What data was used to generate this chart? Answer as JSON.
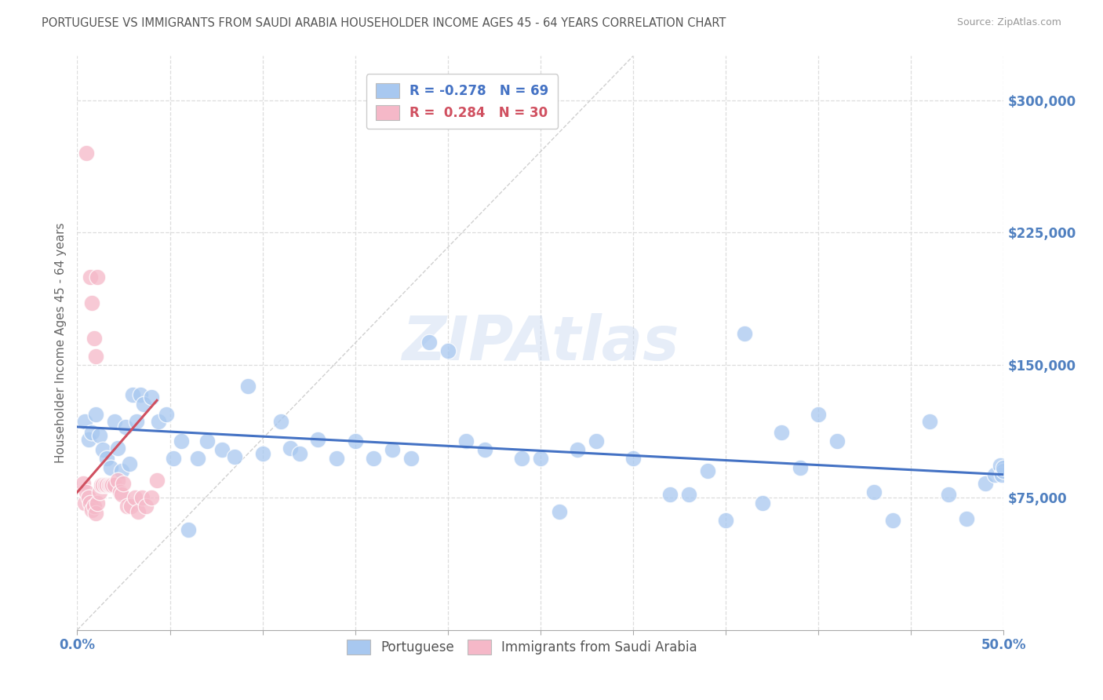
{
  "title": "PORTUGUESE VS IMMIGRANTS FROM SAUDI ARABIA HOUSEHOLDER INCOME AGES 45 - 64 YEARS CORRELATION CHART",
  "source": "Source: ZipAtlas.com",
  "ylabel": "Householder Income Ages 45 - 64 years",
  "xlim": [
    0.0,
    0.5
  ],
  "ylim": [
    0,
    325000
  ],
  "xticks": [
    0.0,
    0.05,
    0.1,
    0.15,
    0.2,
    0.25,
    0.3,
    0.35,
    0.4,
    0.45,
    0.5
  ],
  "ytick_positions": [
    75000,
    150000,
    225000,
    300000
  ],
  "ytick_labels": [
    "$75,000",
    "$150,000",
    "$225,000",
    "$300,000"
  ],
  "blue_R": -0.278,
  "blue_N": 69,
  "pink_R": 0.284,
  "pink_N": 30,
  "blue_color": "#a8c8f0",
  "pink_color": "#f5b8c8",
  "blue_line_color": "#4472c4",
  "pink_line_color": "#d05060",
  "ref_line_color": "#cccccc",
  "grid_color": "#dddddd",
  "axis_label_color": "#5080c0",
  "blue_scatter_x": [
    0.004,
    0.006,
    0.008,
    0.01,
    0.012,
    0.014,
    0.016,
    0.018,
    0.02,
    0.022,
    0.024,
    0.026,
    0.028,
    0.03,
    0.032,
    0.034,
    0.036,
    0.04,
    0.044,
    0.048,
    0.052,
    0.056,
    0.06,
    0.065,
    0.07,
    0.078,
    0.085,
    0.092,
    0.1,
    0.11,
    0.115,
    0.12,
    0.13,
    0.14,
    0.15,
    0.16,
    0.17,
    0.18,
    0.19,
    0.2,
    0.21,
    0.22,
    0.24,
    0.25,
    0.26,
    0.27,
    0.28,
    0.3,
    0.32,
    0.33,
    0.34,
    0.35,
    0.36,
    0.37,
    0.38,
    0.39,
    0.4,
    0.41,
    0.43,
    0.44,
    0.46,
    0.47,
    0.48,
    0.49,
    0.495,
    0.498,
    0.499,
    0.5,
    0.5
  ],
  "blue_scatter_y": [
    118000,
    108000,
    112000,
    122000,
    110000,
    102000,
    97000,
    92000,
    118000,
    103000,
    90000,
    115000,
    94000,
    133000,
    118000,
    133000,
    128000,
    132000,
    118000,
    122000,
    97000,
    107000,
    57000,
    97000,
    107000,
    102000,
    98000,
    138000,
    100000,
    118000,
    103000,
    100000,
    108000,
    97000,
    107000,
    97000,
    102000,
    97000,
    163000,
    158000,
    107000,
    102000,
    97000,
    97000,
    67000,
    102000,
    107000,
    97000,
    77000,
    77000,
    90000,
    62000,
    168000,
    72000,
    112000,
    92000,
    122000,
    107000,
    78000,
    62000,
    118000,
    77000,
    63000,
    83000,
    88000,
    93000,
    88000,
    90000,
    92000
  ],
  "pink_scatter_x": [
    0.003,
    0.004,
    0.005,
    0.006,
    0.007,
    0.008,
    0.009,
    0.01,
    0.011,
    0.012,
    0.013,
    0.014,
    0.015,
    0.016,
    0.017,
    0.018,
    0.019,
    0.02,
    0.022,
    0.023,
    0.024,
    0.025,
    0.027,
    0.029,
    0.031,
    0.033,
    0.035,
    0.037,
    0.04,
    0.043
  ],
  "pink_scatter_y": [
    83000,
    72000,
    78000,
    75000,
    72000,
    68000,
    70000,
    66000,
    72000,
    78000,
    82000,
    82000,
    82000,
    82000,
    82000,
    82000,
    82000,
    82000,
    85000,
    78000,
    77000,
    83000,
    70000,
    70000,
    75000,
    67000,
    75000,
    70000,
    75000,
    85000
  ],
  "pink_high_x": [
    0.005,
    0.007,
    0.008,
    0.009,
    0.01,
    0.011
  ],
  "pink_high_y": [
    270000,
    200000,
    185000,
    165000,
    155000,
    200000
  ],
  "watermark": "ZIPAtlas"
}
